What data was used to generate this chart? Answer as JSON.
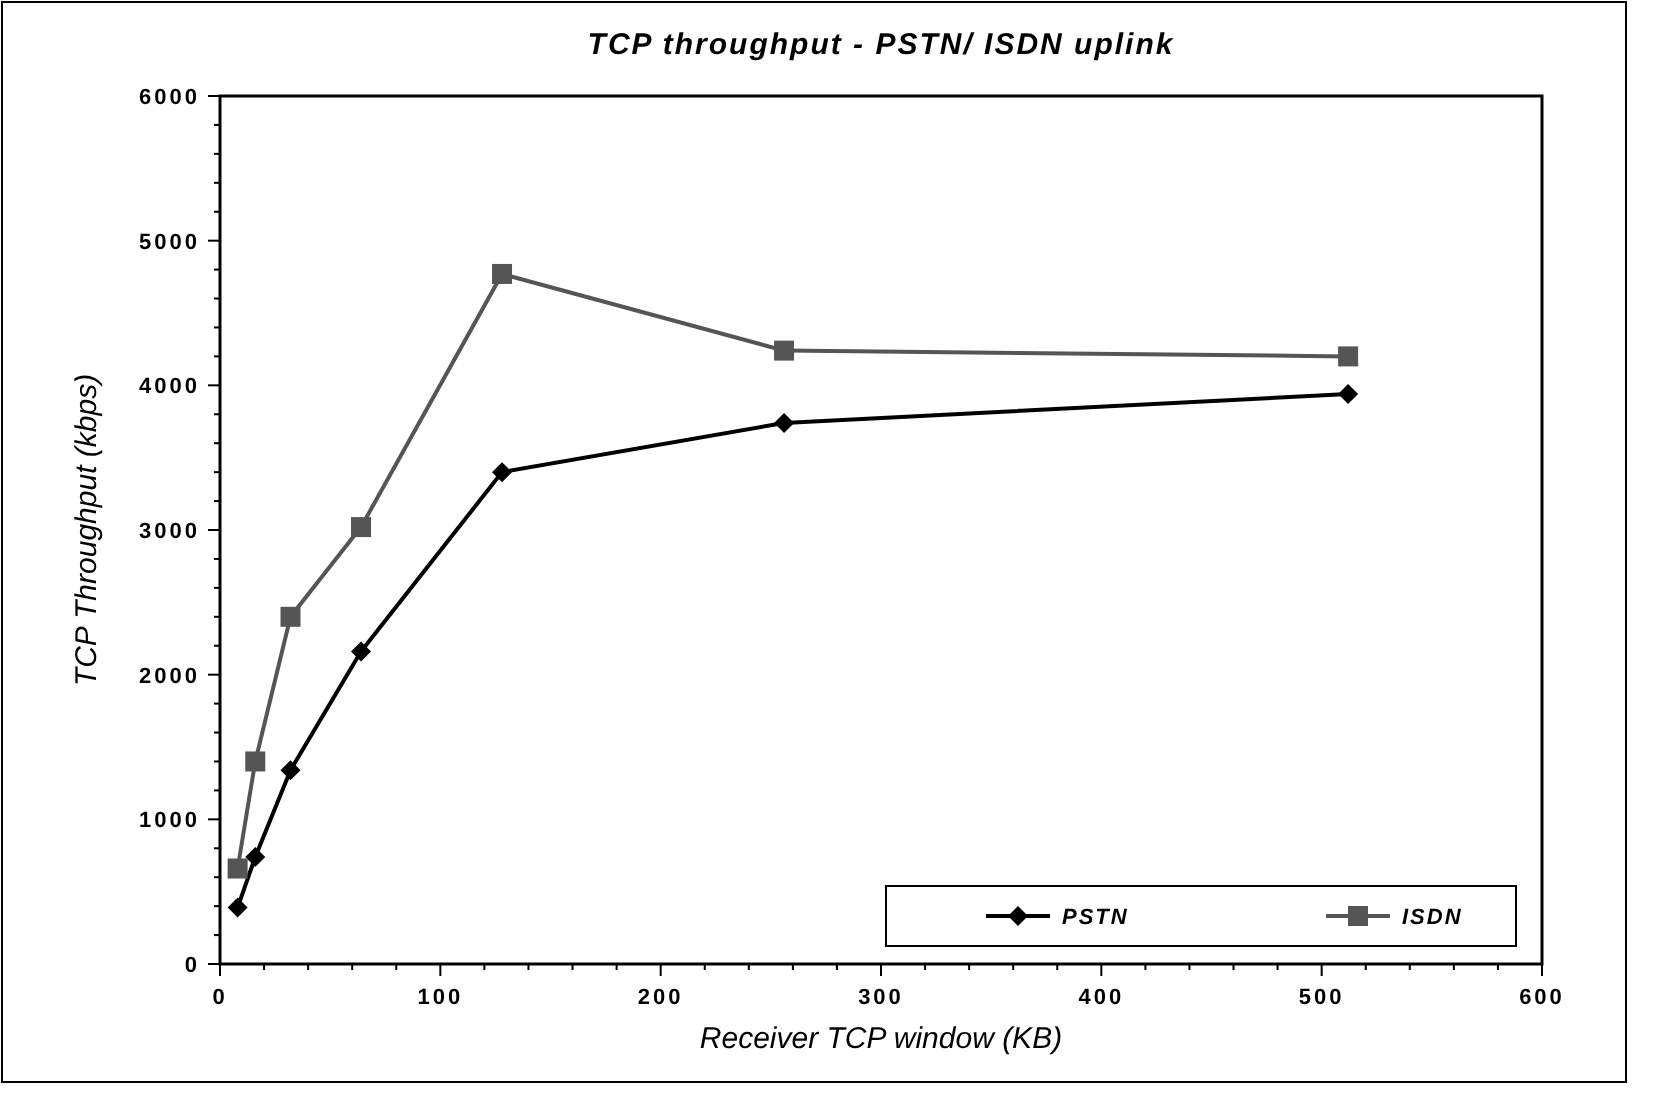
{
  "chart_data": {
    "type": "line",
    "title": "TCP throughput - PSTN/ ISDN uplink",
    "xlabel": "Receiver TCP window (KB)",
    "ylabel": "TCP Throughput (kbps)",
    "x": [
      8,
      16,
      32,
      64,
      128,
      256,
      512
    ],
    "series": [
      {
        "name": "PSTN",
        "color": "#000000",
        "marker": "diamond",
        "values": [
          390,
          740,
          1340,
          2160,
          3400,
          3740,
          3940
        ]
      },
      {
        "name": "ISDN",
        "color": "#555555",
        "marker": "square",
        "values": [
          660,
          1400,
          2400,
          3020,
          4770,
          4240,
          4200
        ]
      }
    ],
    "xlim": [
      0,
      600
    ],
    "xticks": [
      0,
      100,
      200,
      300,
      400,
      500,
      600
    ],
    "ylim": [
      0,
      6000
    ],
    "yticks": [
      0,
      1000,
      2000,
      3000,
      4000,
      5000,
      6000
    ],
    "grid": false,
    "legend": "bottom right",
    "line_style": "solid"
  }
}
